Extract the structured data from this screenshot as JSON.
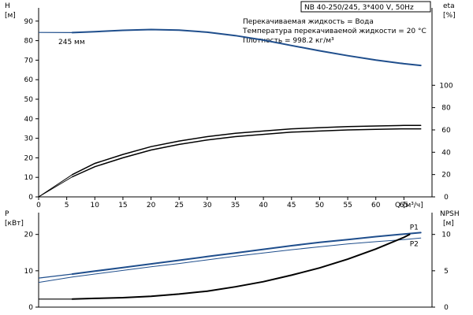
{
  "header": {
    "model": "NB 40-250/245, 3*400 V, 50Hz",
    "liquid": "Перекачиваемая жидкость = Вода",
    "temperature": "Температура перекачиваемой жидкости = 20 °C",
    "density": "Плотность = 998.2 кг/м³"
  },
  "colors": {
    "blue": "#1f4e8c",
    "black": "#000000",
    "frame": "#000000"
  },
  "chart_data": [
    {
      "type": "line",
      "panel": "head-efficiency",
      "xlabel": "Q [м³/ч]",
      "xlim": [
        0,
        70
      ],
      "xticks": [
        0,
        5,
        10,
        15,
        20,
        25,
        30,
        35,
        40,
        45,
        50,
        55,
        60,
        65
      ],
      "ylabel_left": "H",
      "yunit_left": "[м]",
      "ylim_left": [
        0,
        100
      ],
      "yticks_left": [
        0,
        10,
        20,
        30,
        40,
        50,
        60,
        70,
        80,
        90
      ],
      "ylabel_right": "eta",
      "yunit_right": "[%]",
      "ylim_right": [
        0,
        175
      ],
      "yticks_right": [
        0,
        20,
        40,
        60,
        80,
        100
      ],
      "annotation": "245 мм",
      "series": [
        {
          "axis": "left",
          "color": "blue",
          "dashed_to": 6,
          "width": 2,
          "x": [
            0,
            6,
            10,
            15,
            20,
            25,
            30,
            35,
            40,
            45,
            50,
            55,
            60,
            65,
            68
          ],
          "y": [
            84.2,
            84.1,
            84.6,
            85.3,
            85.7,
            85.4,
            84.3,
            82.6,
            80.3,
            77.5,
            74.8,
            72.3,
            70.1,
            68.2,
            67.3
          ]
        },
        {
          "axis": "right",
          "color": "black",
          "dashed_to": 6,
          "width": 1.5,
          "x": [
            0,
            6,
            10,
            15,
            20,
            25,
            30,
            35,
            40,
            45,
            50,
            55,
            60,
            65,
            68
          ],
          "y": [
            0,
            18,
            27,
            35,
            42,
            47,
            51,
            54,
            56,
            58,
            59,
            60,
            60.5,
            61,
            61
          ]
        },
        {
          "axis": "right",
          "color": "black",
          "dashed_to": 6,
          "width": 1.5,
          "x": [
            0,
            6,
            10,
            15,
            20,
            25,
            30,
            35,
            40,
            45,
            50,
            55,
            60,
            65,
            68
          ],
          "y": [
            0,
            20,
            30,
            38,
            45,
            50,
            54,
            57,
            59,
            61,
            62,
            63,
            63.5,
            64,
            64
          ]
        }
      ]
    },
    {
      "type": "line",
      "panel": "power-npsh",
      "xlim": [
        0,
        70
      ],
      "ylabel_left": "P",
      "yunit_left": "[кВт]",
      "ylim_left": [
        0,
        26
      ],
      "yticks_left": [
        0,
        10,
        20
      ],
      "ylabel_right": "NPSH",
      "yunit_right": "[м]",
      "ylim_right": [
        0,
        13
      ],
      "yticks_right": [
        0,
        5,
        10
      ],
      "series": [
        {
          "name": "P1",
          "axis": "left",
          "color": "blue",
          "dashed_to": 6,
          "width": 2,
          "x": [
            0,
            6,
            10,
            15,
            20,
            25,
            30,
            35,
            40,
            45,
            50,
            55,
            60,
            65,
            68
          ],
          "y": [
            8.0,
            9.1,
            9.9,
            10.9,
            11.9,
            12.9,
            13.9,
            14.9,
            15.9,
            16.9,
            17.8,
            18.6,
            19.4,
            20.1,
            20.5
          ]
        },
        {
          "name": "P2",
          "axis": "left",
          "color": "blue",
          "dashed_to": 6,
          "width": 1,
          "x": [
            0,
            6,
            10,
            15,
            20,
            25,
            30,
            35,
            40,
            45,
            50,
            55,
            60,
            65,
            68
          ],
          "y": [
            6.8,
            8.3,
            9.1,
            10.1,
            11.1,
            12.0,
            13.0,
            14.0,
            14.9,
            15.8,
            16.6,
            17.4,
            18.0,
            18.6,
            19.0
          ]
        },
        {
          "axis": "right",
          "color": "black",
          "dashed_to": 6,
          "width": 2,
          "x": [
            0,
            6,
            10,
            15,
            20,
            25,
            30,
            35,
            40,
            45,
            50,
            55,
            60,
            65,
            66
          ],
          "y": [
            1.1,
            1.1,
            1.2,
            1.3,
            1.5,
            1.8,
            2.2,
            2.8,
            3.5,
            4.4,
            5.4,
            6.6,
            8.0,
            9.6,
            10.0
          ]
        }
      ]
    }
  ]
}
